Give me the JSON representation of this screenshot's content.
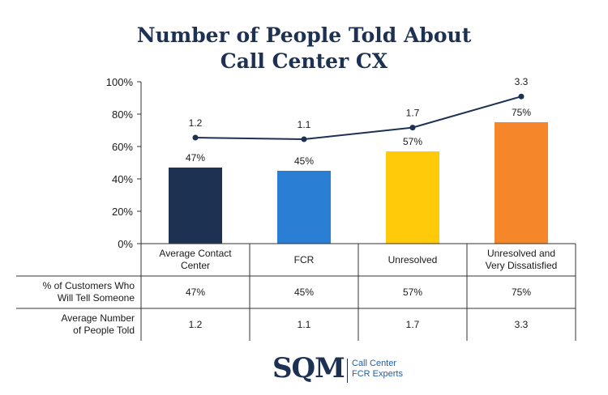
{
  "title_line1": "Number of People Told About",
  "title_line2": "Call Center CX",
  "chart_data": {
    "type": "bar",
    "categories": [
      "Average Contact Center",
      "FCR",
      "Unresolved",
      "Unresolved and Very Dissatisfied"
    ],
    "category_labels": [
      [
        "Average Contact",
        "Center"
      ],
      [
        "FCR"
      ],
      [
        "Unresolved"
      ],
      [
        "Unresolved and",
        "Very Dissatisfied"
      ]
    ],
    "series": [
      {
        "name": "% of Customers Who Will Tell Someone",
        "type": "bar",
        "values": [
          47,
          45,
          57,
          75
        ],
        "labels": [
          "47%",
          "45%",
          "57%",
          "75%"
        ]
      },
      {
        "name": "Average Number of People Told",
        "type": "line",
        "values": [
          1.2,
          1.1,
          1.7,
          3.3
        ],
        "labels": [
          "1.2",
          "1.1",
          "1.7",
          "3.3"
        ]
      }
    ],
    "bar_colors": [
      "#1d3153",
      "#2a7fd4",
      "#ffca0a",
      "#f5872a"
    ],
    "line_color": "#1d3153",
    "y_ticks": [
      "0%",
      "20%",
      "40%",
      "60%",
      "80%",
      "100%"
    ],
    "ylim": [
      0,
      100
    ],
    "grid": false
  },
  "table": {
    "rows": [
      {
        "header": [
          "% of Customers Who",
          "Will Tell Someone"
        ],
        "values": [
          "47%",
          "45%",
          "57%",
          "75%"
        ]
      },
      {
        "header": [
          "Average Number",
          "of People Told"
        ],
        "values": [
          "1.2",
          "1.1",
          "1.7",
          "3.3"
        ]
      }
    ]
  },
  "logo": {
    "letters": "SQM",
    "tag_line1": "Call Center",
    "tag_line2": "FCR Experts",
    "mark": "®™"
  }
}
